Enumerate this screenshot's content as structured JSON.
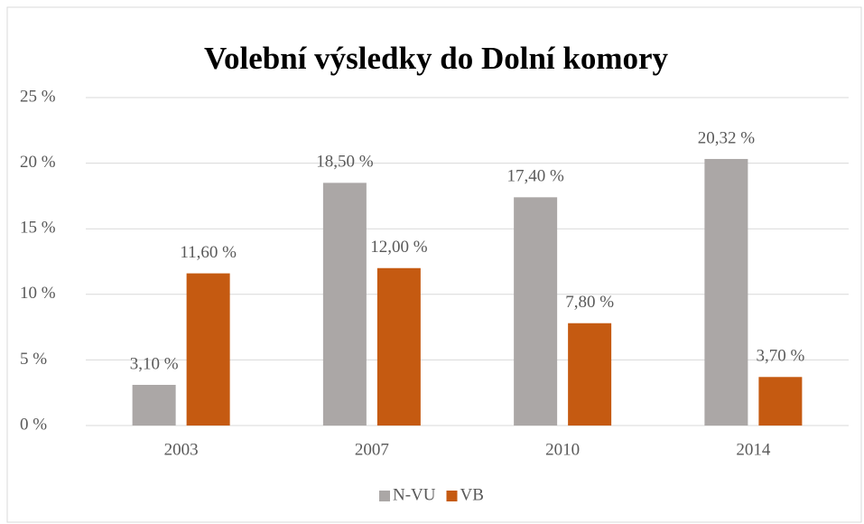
{
  "chart_data": {
    "type": "bar",
    "title": "Volební výsledky do Dolní komory",
    "categories": [
      "2003",
      "2007",
      "2010",
      "2014"
    ],
    "series": [
      {
        "name": "N-VU",
        "color": "#aba7a6",
        "values": [
          3.1,
          18.5,
          17.4,
          20.32
        ],
        "value_labels": [
          "3,10 %",
          "18,50 %",
          "17,40 %",
          "20,32 %"
        ]
      },
      {
        "name": "VB",
        "color": "#c55a11",
        "values": [
          11.6,
          12.0,
          7.8,
          3.7
        ],
        "value_labels": [
          "11,60 %",
          "12,00 %",
          "7,80 %",
          "3,70 %"
        ]
      }
    ],
    "ylim": [
      0,
      25
    ],
    "yticks": [
      {
        "value": 0,
        "label": "0 %"
      },
      {
        "value": 5,
        "label": "5 %"
      },
      {
        "value": 10,
        "label": "10 %"
      },
      {
        "value": 15,
        "label": "15 %"
      },
      {
        "value": 20,
        "label": "20 %"
      },
      {
        "value": 25,
        "label": "25 %"
      }
    ],
    "grid": true,
    "legend": "bottom"
  }
}
